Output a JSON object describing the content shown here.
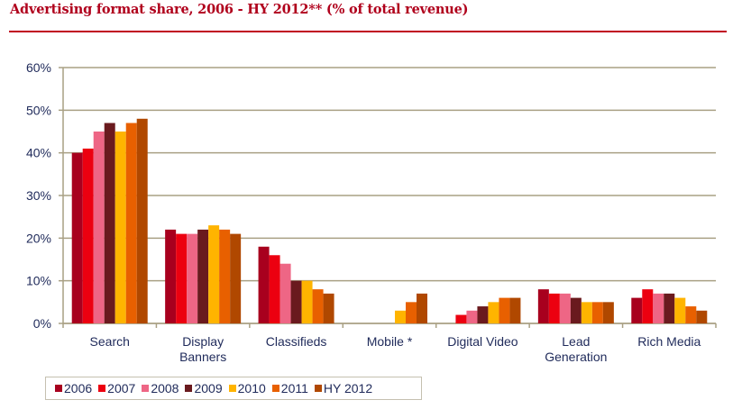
{
  "title": "Advertising format share, 2006 - HY 2012** (% of total revenue)",
  "chart_data": {
    "type": "bar",
    "title": "Advertising format share, 2006 - HY 2012** (% of total revenue)",
    "xlabel": "",
    "ylabel": "",
    "ylim": [
      0,
      60
    ],
    "yticks": [
      "0%",
      "10%",
      "20%",
      "30%",
      "40%",
      "50%",
      "60%"
    ],
    "grid": true,
    "legend_position": "bottom-left",
    "categories": [
      "Search",
      "Display Banners",
      "Classifieds",
      "Mobile *",
      "Digital Video",
      "Lead Generation",
      "Rich Media"
    ],
    "category_lines": [
      [
        "Search"
      ],
      [
        "Display",
        "Banners"
      ],
      [
        "Classifieds"
      ],
      [
        "Mobile *"
      ],
      [
        "Digital Video"
      ],
      [
        "Lead",
        "Generation"
      ],
      [
        "Rich Media"
      ]
    ],
    "series": [
      {
        "name": "2006",
        "color": "#a8001e",
        "values": [
          40,
          22,
          18,
          0,
          0,
          8,
          6
        ]
      },
      {
        "name": "2007",
        "color": "#ec0010",
        "values": [
          41,
          21,
          16,
          0,
          2,
          7,
          8
        ]
      },
      {
        "name": "2008",
        "color": "#ee6685",
        "values": [
          45,
          21,
          14,
          0,
          3,
          7,
          7
        ]
      },
      {
        "name": "2009",
        "color": "#6a1a1e",
        "values": [
          47,
          22,
          10,
          0,
          4,
          6,
          7
        ]
      },
      {
        "name": "2010",
        "color": "#ffb400",
        "values": [
          45,
          23,
          10,
          3,
          5,
          5,
          6
        ]
      },
      {
        "name": "2011",
        "color": "#e86000",
        "values": [
          47,
          22,
          8,
          5,
          6,
          5,
          4
        ]
      },
      {
        "name": "HY 2012",
        "color": "#b04800",
        "values": [
          48,
          21,
          7,
          7,
          6,
          5,
          3
        ]
      }
    ]
  }
}
